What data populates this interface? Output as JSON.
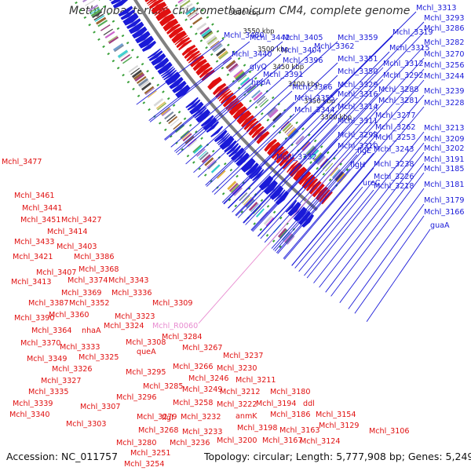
{
  "title": "Methylobacterium chloromethanicum CM4, complete genome",
  "footer": {
    "accession": "Accession: NC_011757",
    "summary": "Topology: circular; Length: 5,777,908 bp; Genes: 5,249"
  },
  "colors": {
    "forward": "#1a1ad8",
    "reverse": "#e01010",
    "rna": "#e88bd0",
    "backbone": "#808080"
  },
  "ticks": [
    "3750 kbp",
    "3700 kbp",
    "3650 kbp",
    "3600 kbp",
    "3550 kbp",
    "3500 kbp",
    "3450 kbp",
    "3400 kbp",
    "3350 kbp",
    "3300 kbp"
  ],
  "forward_labels": [
    "Mchl_3313",
    "Mchl_3293",
    "Mchl_3286",
    "Mchl_3282",
    "Mchl_3270",
    "Mchl_3256",
    "Mchl_3244",
    "Mchl_3239",
    "Mchl_3228",
    "Mchl_3213",
    "Mchl_3209",
    "Mchl_3202",
    "Mchl_3191",
    "Mchl_3185",
    "Mchl_3181",
    "Mchl_3179",
    "Mchl_3166",
    "guaA",
    "Mchl_3319",
    "Mchl_3315",
    "Mchl_3312",
    "Mchl_3292",
    "Mchl_3288",
    "Mchl_3281",
    "Mchl_3277",
    "Mchl_3262",
    "Mchl_3253",
    "Mchl_3243",
    "Mchl_3238",
    "Mchl_3226",
    "Mchl_3218",
    "Mchl_3359",
    "Mchl_3351",
    "Mchl_3350",
    "Mchl_3329",
    "Mchl_3316",
    "Mchl_3314",
    "Mchl_3311",
    "Mchl_3298",
    "Mchl_3310",
    "flgE",
    "flgH",
    "ureC",
    "Mchl_3480",
    "Mchl_3442",
    "Mchl_3405",
    "Mchl_3404",
    "Mchl_3362",
    "Mchl_3440",
    "Mchl_3396",
    "glyQ",
    "Mchl_3391",
    "hppA",
    "Mchl_3366",
    "Mchl_3355",
    "Mchl_3344",
    "Mchl_3332"
  ],
  "reverse_labels": [
    "Mchl_3477",
    "Mchl_3461",
    "Mchl_3441",
    "Mchl_3451",
    "Mchl_3427",
    "Mchl_3414",
    "Mchl_3433",
    "Mchl_3421",
    "Mchl_3403",
    "Mchl_3386",
    "Mchl_3407",
    "Mchl_3368",
    "Mchl_3413",
    "Mchl_3374",
    "Mchl_3343",
    "Mchl_3369",
    "Mchl_3336",
    "Mchl_3387",
    "Mchl_3352",
    "Mchl_3309",
    "Mchl_3390",
    "Mchl_3360",
    "Mchl_3323",
    "Mchl_3364",
    "nhaA",
    "Mchl_3324",
    "Mchl_3370",
    "Mchl_3308",
    "Mchl_3284",
    "Mchl_3333",
    "queA",
    "Mchl_3267",
    "Mchl_3349",
    "Mchl_3325",
    "Mchl_3266",
    "Mchl_3237",
    "Mchl_3326",
    "Mchl_3295",
    "Mchl_3230",
    "Mchl_3327",
    "Mchl_3246",
    "Mchl_3211",
    "Mchl_3335",
    "Mchl_3285",
    "Mchl_3249",
    "Mchl_3212",
    "Mchl_3180",
    "Mchl_3339",
    "Mchl_3296",
    "Mchl_3258",
    "Mchl_3222",
    "Mchl_3194",
    "ddl",
    "Mchl_3340",
    "Mchl_3307",
    "Mchl_3232",
    "anmK",
    "Mchl_3186",
    "Mchl_3154",
    "Mchl_3303",
    "Mchl_3279",
    "flgI",
    "Mchl_3129",
    "Mchl_3268",
    "Mchl_3233",
    "Mchl_3198",
    "Mchl_3163",
    "Mchl_3106",
    "Mchl_3280",
    "Mchl_3236",
    "Mchl_3200",
    "Mchl_3167",
    "Mchl_3124",
    "Mchl_3251",
    "Mchl_3254"
  ],
  "rna_labels": [
    "Mchl_R0060"
  ]
}
